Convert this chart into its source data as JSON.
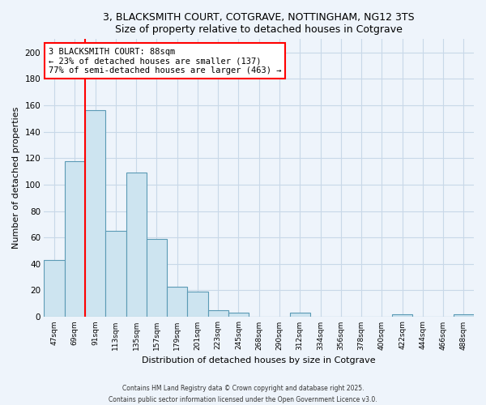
{
  "title": "3, BLACKSMITH COURT, COTGRAVE, NOTTINGHAM, NG12 3TS",
  "subtitle": "Size of property relative to detached houses in Cotgrave",
  "xlabel": "Distribution of detached houses by size in Cotgrave",
  "ylabel": "Number of detached properties",
  "bin_labels": [
    "47sqm",
    "69sqm",
    "91sqm",
    "113sqm",
    "135sqm",
    "157sqm",
    "179sqm",
    "201sqm",
    "223sqm",
    "245sqm",
    "268sqm",
    "290sqm",
    "312sqm",
    "334sqm",
    "356sqm",
    "378sqm",
    "400sqm",
    "422sqm",
    "444sqm",
    "466sqm",
    "488sqm"
  ],
  "bar_values": [
    43,
    118,
    156,
    65,
    109,
    59,
    23,
    19,
    5,
    3,
    0,
    0,
    3,
    0,
    0,
    0,
    0,
    2,
    0,
    0,
    2
  ],
  "bar_color": "#cde4f0",
  "bar_edge_color": "#5b9ab5",
  "vline_index": 2,
  "vline_color": "red",
  "annotation_title": "3 BLACKSMITH COURT: 88sqm",
  "annotation_line1": "← 23% of detached houses are smaller (137)",
  "annotation_line2": "77% of semi-detached houses are larger (463) →",
  "annotation_box_color": "white",
  "annotation_box_edge": "red",
  "ylim": [
    0,
    210
  ],
  "yticks": [
    0,
    20,
    40,
    60,
    80,
    100,
    120,
    140,
    160,
    180,
    200
  ],
  "footer_line1": "Contains HM Land Registry data © Crown copyright and database right 2025.",
  "footer_line2": "Contains public sector information licensed under the Open Government Licence v3.0.",
  "bg_color": "#eef4fb",
  "grid_color": "#c8d8e8"
}
